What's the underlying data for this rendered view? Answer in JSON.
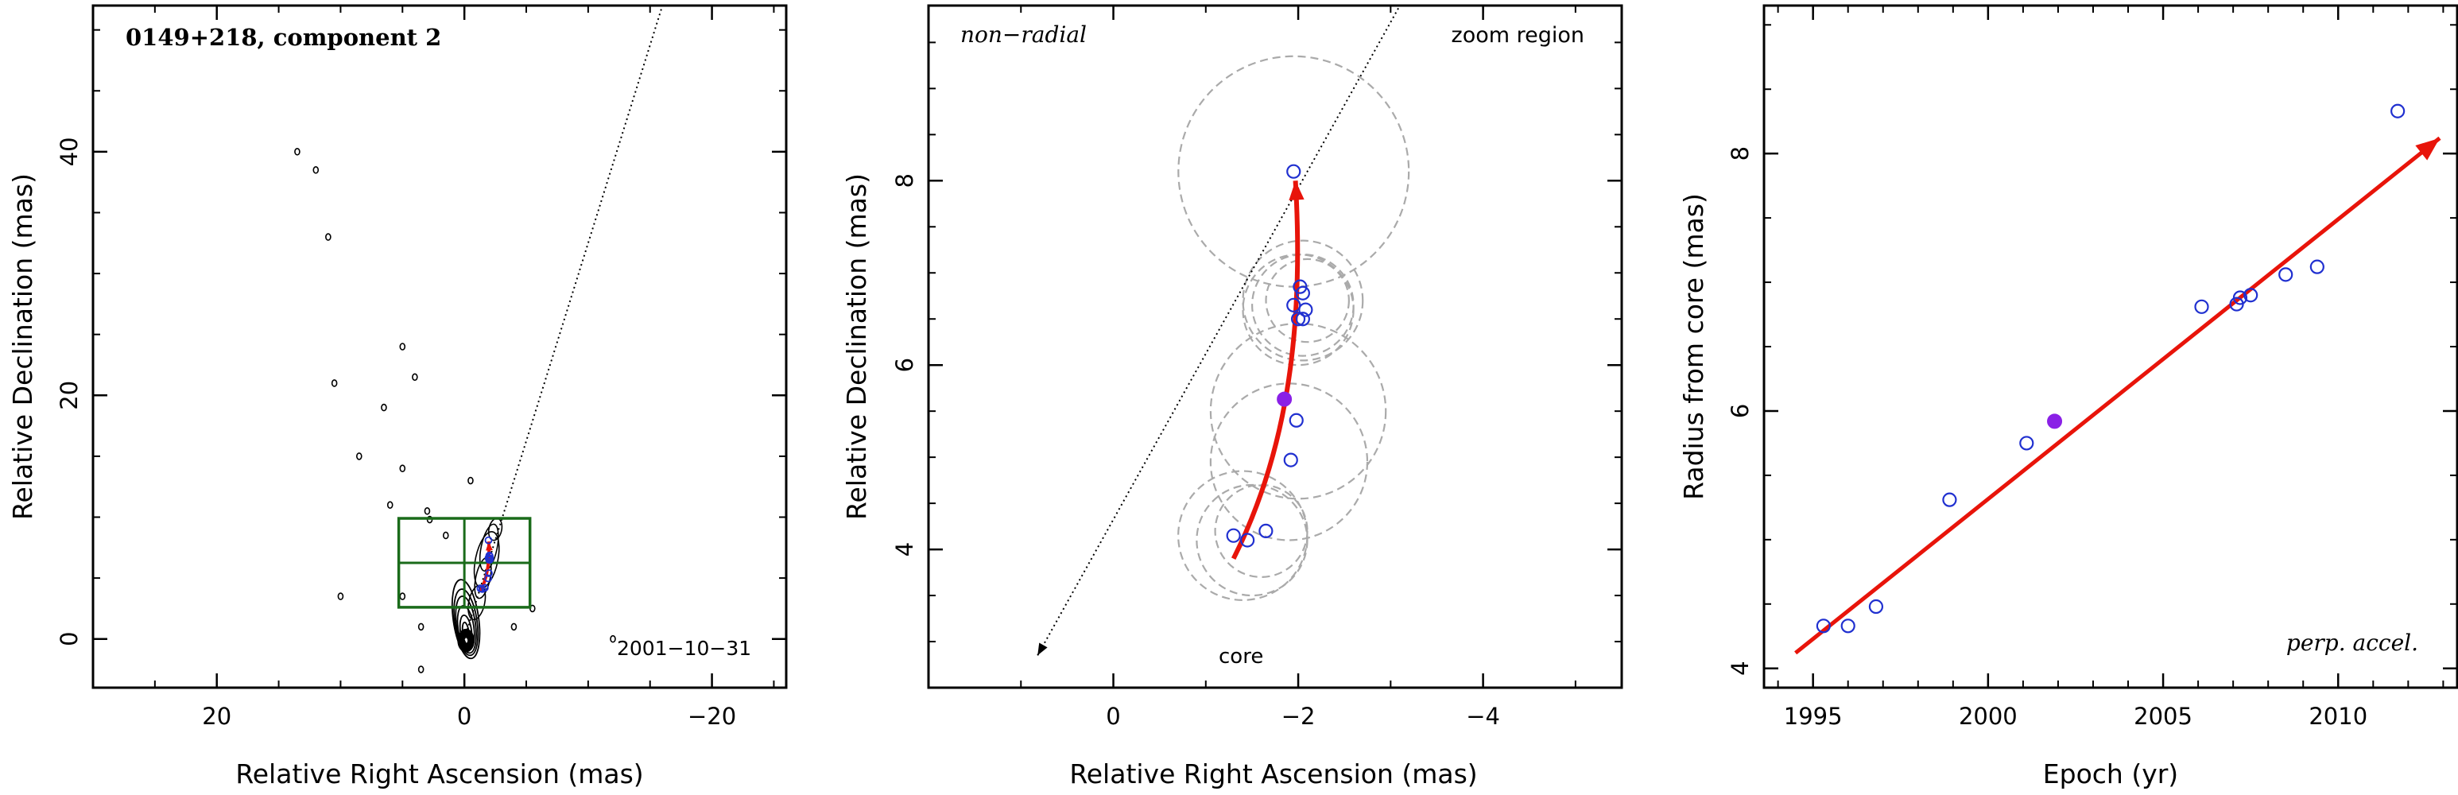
{
  "chart_data": [
    {
      "type": "scatter",
      "panel": "left",
      "title": "0149+218, component 2",
      "epoch_label": "2001−10−31",
      "xlabel": "Relative Right Ascension (mas)",
      "ylabel": "Relative Declination (mas)",
      "xlim": [
        30,
        -26
      ],
      "ylim": [
        -4,
        52
      ],
      "xticks": [
        20,
        0,
        -20
      ],
      "xtick_labels": [
        "20",
        "0",
        "−20"
      ],
      "yticks": [
        0,
        20,
        40
      ],
      "ytick_labels": [
        "0",
        "20",
        "40"
      ],
      "jet_axis_line": [
        [
          0,
          0
        ],
        [
          -16,
          52
        ]
      ],
      "zoom_box": {
        "x": [
          5.3,
          -5.3
        ],
        "y": [
          2.6,
          9.9
        ],
        "color": "#1a6b1a"
      },
      "contour_islands": [
        [
          13.5,
          40
        ],
        [
          12,
          38.5
        ],
        [
          11,
          33
        ],
        [
          5,
          24
        ],
        [
          4,
          21.5
        ],
        [
          10.5,
          21
        ],
        [
          6.5,
          19
        ],
        [
          8.5,
          15
        ],
        [
          5,
          14
        ],
        [
          -0.5,
          13
        ],
        [
          6,
          11
        ],
        [
          3,
          10.5
        ],
        [
          2.8,
          9.8
        ],
        [
          1.5,
          8.5
        ],
        [
          10,
          3.5
        ],
        [
          5,
          3.5
        ],
        [
          3.5,
          1
        ],
        [
          3.5,
          -2.5
        ],
        [
          -4,
          1
        ],
        [
          -5.5,
          2.5
        ],
        [
          -12,
          0
        ]
      ],
      "colors": {
        "contour": "#000000",
        "box": "#1a6b1a",
        "track": "#e8140a",
        "points": "#2030d0"
      }
    },
    {
      "type": "scatter",
      "panel": "middle",
      "labels": {
        "top_left": "non−radial",
        "top_right": "zoom region",
        "core": "core"
      },
      "xlabel": "Relative Right Ascension (mas)",
      "ylabel": "Relative Declination (mas)",
      "xlim": [
        2.0,
        -5.5
      ],
      "ylim": [
        2.5,
        9.9
      ],
      "xticks": [
        0,
        -2,
        -4
      ],
      "xtick_labels": [
        "0",
        "−2",
        "−4"
      ],
      "yticks": [
        4,
        6,
        8
      ],
      "ytick_labels": [
        "4",
        "6",
        "8"
      ],
      "axis_line": [
        [
          0.82,
          2.85
        ],
        [
          -3.1,
          9.9
        ]
      ],
      "points": [
        {
          "x": -1.95,
          "y": 8.1
        },
        {
          "x": -2.02,
          "y": 6.85
        },
        {
          "x": -2.05,
          "y": 6.78
        },
        {
          "x": -2.08,
          "y": 6.6
        },
        {
          "x": -2.0,
          "y": 6.5
        },
        {
          "x": -2.05,
          "y": 6.5
        },
        {
          "x": -1.95,
          "y": 6.65
        },
        {
          "x": -1.98,
          "y": 5.4
        },
        {
          "x": -1.92,
          "y": 4.97
        },
        {
          "x": -1.65,
          "y": 4.2
        },
        {
          "x": -1.45,
          "y": 4.1
        },
        {
          "x": -1.3,
          "y": 4.15
        }
      ],
      "highlight_point": {
        "x": -1.85,
        "y": 5.63
      },
      "error_circles": [
        {
          "x": -1.95,
          "y": 8.1,
          "r": 1.25
        },
        {
          "x": -2.05,
          "y": 6.7,
          "r": 0.65
        },
        {
          "x": -2.05,
          "y": 6.65,
          "r": 0.55
        },
        {
          "x": -2.1,
          "y": 6.7,
          "r": 0.45
        },
        {
          "x": -2.0,
          "y": 6.6,
          "r": 0.6
        },
        {
          "x": -2.0,
          "y": 5.5,
          "r": 0.95
        },
        {
          "x": -1.9,
          "y": 4.95,
          "r": 0.85
        },
        {
          "x": -1.5,
          "y": 4.1,
          "r": 0.6
        },
        {
          "x": -1.4,
          "y": 4.15,
          "r": 0.7
        },
        {
          "x": -1.6,
          "y": 4.2,
          "r": 0.5
        }
      ],
      "track": [
        [
          -1.3,
          3.9
        ],
        [
          -1.85,
          5.0
        ],
        [
          -2.07,
          6.3
        ],
        [
          -1.97,
          8.0
        ]
      ],
      "colors": {
        "track": "#e8140a",
        "points": "#2030d0",
        "highlight": "#8a20e6",
        "circles": "#aaaaaa"
      }
    },
    {
      "type": "scatter",
      "panel": "right",
      "label": "perp. accel.",
      "xlabel": "Epoch (yr)",
      "ylabel": "Radius from core (mas)",
      "xlim": [
        1993.6,
        2013.4
      ],
      "ylim": [
        3.85,
        9.15
      ],
      "xticks": [
        1995,
        2000,
        2005,
        2010
      ],
      "yticks": [
        4,
        6,
        8
      ],
      "points": [
        {
          "x": 1995.3,
          "y": 4.33
        },
        {
          "x": 1996.0,
          "y": 4.33
        },
        {
          "x": 1996.8,
          "y": 4.48
        },
        {
          "x": 1998.9,
          "y": 5.31
        },
        {
          "x": 2001.1,
          "y": 5.75
        },
        {
          "x": 2006.1,
          "y": 6.81
        },
        {
          "x": 2007.1,
          "y": 6.83
        },
        {
          "x": 2007.2,
          "y": 6.88
        },
        {
          "x": 2007.5,
          "y": 6.9
        },
        {
          "x": 2008.5,
          "y": 7.06
        },
        {
          "x": 2009.4,
          "y": 7.12
        },
        {
          "x": 2011.7,
          "y": 8.33
        }
      ],
      "highlight_point": {
        "x": 2001.9,
        "y": 5.92
      },
      "fit_line": [
        [
          1994.5,
          4.12
        ],
        [
          2012.9,
          8.12
        ]
      ],
      "colors": {
        "fit": "#e8140a",
        "points": "#2030d0",
        "highlight": "#8a20e6"
      }
    }
  ]
}
